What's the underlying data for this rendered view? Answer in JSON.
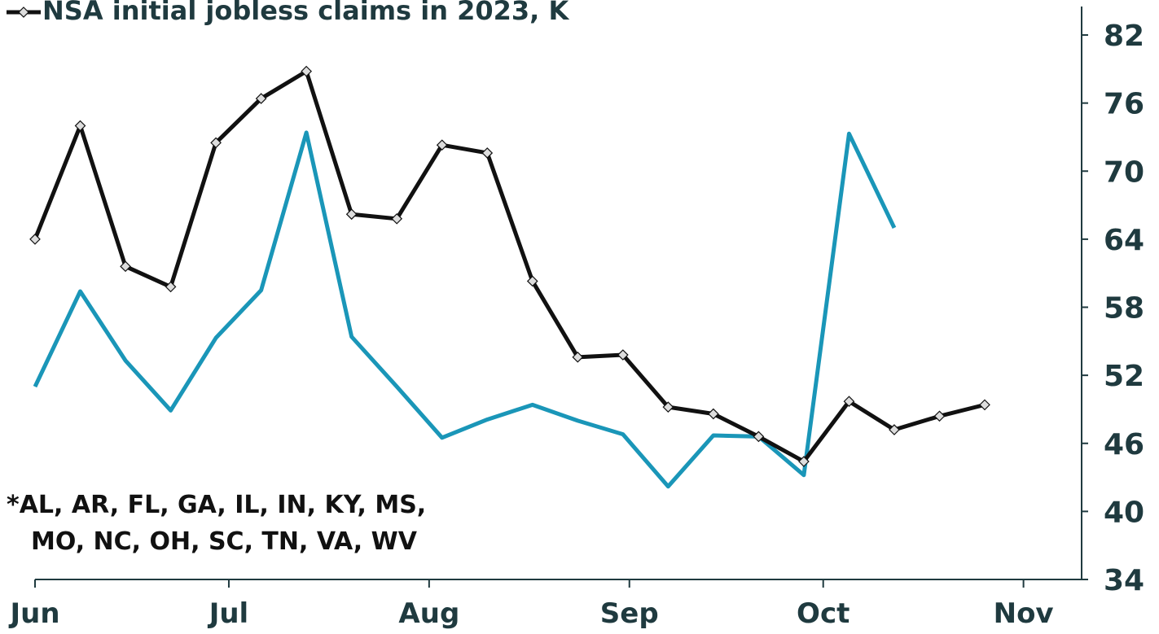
{
  "chart_data": {
    "type": "line",
    "legend_label": "NSA initial jobless claims in 2023, K",
    "annotation": [
      "*AL, AR, FL, GA,  IL, IN, KY, MS,",
      "MO, NC, OH, SC, TN, VA, WV"
    ],
    "x": [
      0,
      7,
      14,
      21,
      28,
      35,
      42,
      49,
      56,
      63,
      70,
      77,
      84,
      91,
      98,
      105,
      112,
      119,
      126,
      133,
      140,
      147
    ],
    "series": [
      {
        "name": "NSA initial jobless claims in 2023, K",
        "color": "#111111",
        "marker": "diamond",
        "values": [
          64.0,
          74.0,
          61.6,
          59.8,
          72.5,
          76.4,
          78.8,
          66.2,
          65.8,
          72.3,
          71.6,
          60.3,
          53.6,
          53.8,
          49.2,
          48.6,
          46.6,
          44.4,
          49.7,
          47.2,
          48.4,
          49.4
        ]
      },
      {
        "color": "#1a96b8",
        "values": [
          51.0,
          59.4,
          53.3,
          48.9,
          55.3,
          59.5,
          73.4,
          55.4,
          51.0,
          46.5,
          48.1,
          49.4,
          48.0,
          46.8,
          42.2,
          46.7,
          46.6,
          43.2,
          73.3,
          65.0,
          null,
          null
        ]
      }
    ],
    "xlim": [
      0,
      162
    ],
    "xticks": [
      {
        "value": 0,
        "label": "Jun"
      },
      {
        "value": 30,
        "label": "Jul"
      },
      {
        "value": 61,
        "label": "Aug"
      },
      {
        "value": 92,
        "label": "Sep"
      },
      {
        "value": 122,
        "label": "Oct"
      },
      {
        "value": 153,
        "label": "Nov"
      }
    ],
    "ylim": [
      34,
      84.8
    ],
    "yticks": [
      34,
      40,
      46,
      52,
      58,
      64,
      70,
      76,
      82
    ],
    "y_axis_side": "right"
  }
}
